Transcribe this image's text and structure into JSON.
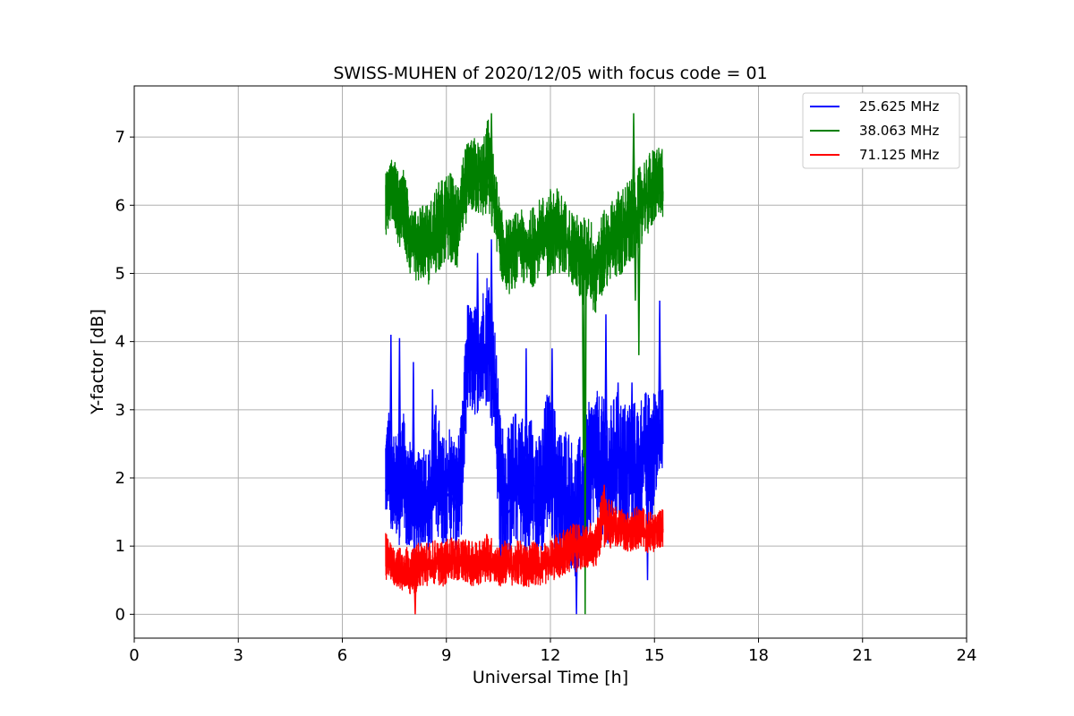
{
  "chart_data": {
    "type": "line",
    "title": "SWISS-MUHEN of 2020/12/05 with focus code = 01",
    "xlabel": "Universal Time [h]",
    "ylabel": "Y-factor [dB]",
    "xlim": [
      0,
      24
    ],
    "ylim": [
      -0.35,
      7.75
    ],
    "xticks": [
      0,
      3,
      6,
      9,
      12,
      15,
      18,
      21,
      24
    ],
    "yticks": [
      0,
      1,
      2,
      3,
      4,
      5,
      6,
      7
    ],
    "grid": true,
    "legend_position": "top-right",
    "series": [
      {
        "name": "25.625 MHz",
        "color": "#0000ff",
        "x": [
          7.25,
          7.35,
          7.45,
          7.55,
          7.65,
          7.75,
          7.85,
          7.95,
          8.1,
          8.3,
          8.5,
          8.7,
          8.9,
          9.1,
          9.3,
          9.45,
          9.6,
          9.8,
          10.0,
          10.2,
          10.4,
          10.55,
          10.7,
          10.9,
          11.1,
          11.3,
          11.5,
          11.7,
          11.9,
          12.1,
          12.3,
          12.5,
          12.7,
          12.9,
          13.1,
          13.3,
          13.5,
          13.7,
          13.9,
          14.1,
          14.3,
          14.5,
          14.7,
          14.9,
          15.1,
          15.25
        ],
        "y": [
          1.8,
          2.3,
          1.6,
          2.0,
          1.7,
          2.2,
          1.5,
          1.8,
          1.3,
          1.7,
          1.5,
          2.0,
          1.6,
          1.8,
          1.5,
          1.9,
          3.7,
          3.5,
          3.6,
          3.7,
          3.3,
          1.8,
          1.4,
          1.6,
          1.8,
          1.5,
          1.7,
          1.4,
          2.0,
          1.8,
          1.5,
          1.6,
          1.3,
          1.5,
          1.9,
          2.1,
          2.0,
          1.8,
          2.2,
          2.0,
          2.1,
          1.9,
          2.4,
          2.0,
          2.6,
          2.5
        ],
        "envelope_low": [
          1.3,
          1.6,
          1.0,
          1.2,
          1.0,
          1.5,
          0.9,
          1.0,
          0.8,
          1.0,
          0.9,
          1.2,
          1.0,
          1.1,
          0.9,
          1.2,
          3.0,
          2.9,
          3.0,
          3.0,
          2.6,
          0.6,
          0.8,
          0.9,
          1.1,
          0.5,
          1.0,
          0.7,
          1.2,
          1.0,
          0.6,
          0.8,
          0.5,
          0.7,
          1.2,
          1.4,
          1.1,
          1.0,
          1.5,
          1.2,
          1.3,
          1.0,
          1.6,
          1.3,
          2.0,
          2.0
        ],
        "envelope_high": [
          2.7,
          3.0,
          2.5,
          2.8,
          2.6,
          3.1,
          2.4,
          2.7,
          2.2,
          2.6,
          2.4,
          3.1,
          2.6,
          2.8,
          2.5,
          3.0,
          4.6,
          4.5,
          4.7,
          5.1,
          4.2,
          3.0,
          2.6,
          2.9,
          3.1,
          2.8,
          3.0,
          2.6,
          3.3,
          3.1,
          2.7,
          2.8,
          2.4,
          2.7,
          3.1,
          3.3,
          3.2,
          3.0,
          3.3,
          3.1,
          3.2,
          3.1,
          3.3,
          3.2,
          3.4,
          3.3
        ],
        "spikes": [
          [
            7.4,
            4.1
          ],
          [
            7.65,
            4.05
          ],
          [
            8.05,
            3.7
          ],
          [
            8.6,
            3.3
          ],
          [
            9.9,
            5.3
          ],
          [
            10.3,
            5.5
          ],
          [
            11.3,
            3.9
          ],
          [
            12.05,
            3.9
          ],
          [
            12.75,
            0.0
          ],
          [
            13.0,
            2.8
          ],
          [
            13.6,
            4.4
          ],
          [
            13.95,
            3.4
          ],
          [
            14.35,
            3.4
          ],
          [
            14.8,
            0.5
          ],
          [
            15.15,
            4.6
          ]
        ]
      },
      {
        "name": "38.063 MHz",
        "color": "#008000",
        "x": [
          7.25,
          7.35,
          7.45,
          7.55,
          7.65,
          7.75,
          7.85,
          7.95,
          8.1,
          8.3,
          8.5,
          8.7,
          8.9,
          9.1,
          9.3,
          9.45,
          9.6,
          9.8,
          10.0,
          10.2,
          10.4,
          10.55,
          10.7,
          10.9,
          11.1,
          11.3,
          11.5,
          11.7,
          11.9,
          12.1,
          12.3,
          12.5,
          12.7,
          12.9,
          13.1,
          13.3,
          13.5,
          13.7,
          13.9,
          14.1,
          14.3,
          14.5,
          14.7,
          14.9,
          15.1,
          15.25
        ],
        "y": [
          6.0,
          6.2,
          6.3,
          6.0,
          5.9,
          6.1,
          5.8,
          5.6,
          5.4,
          5.5,
          5.4,
          5.6,
          5.7,
          5.8,
          5.6,
          6.0,
          6.2,
          6.3,
          6.2,
          6.3,
          6.0,
          5.5,
          5.3,
          5.2,
          5.4,
          5.3,
          5.4,
          5.5,
          5.5,
          5.6,
          5.5,
          5.4,
          5.3,
          5.2,
          5.3,
          5.0,
          5.2,
          5.4,
          5.5,
          5.6,
          5.7,
          5.9,
          6.0,
          6.1,
          6.3,
          6.2
        ],
        "envelope_low": [
          5.5,
          5.7,
          5.8,
          5.5,
          5.3,
          5.5,
          5.2,
          5.0,
          4.9,
          4.9,
          4.8,
          5.0,
          5.1,
          5.2,
          5.0,
          5.5,
          5.8,
          5.9,
          5.8,
          5.8,
          5.5,
          5.0,
          4.7,
          4.7,
          4.9,
          4.8,
          4.8,
          5.0,
          4.9,
          5.0,
          5.0,
          4.9,
          4.8,
          4.5,
          4.6,
          4.4,
          4.6,
          4.9,
          4.9,
          5.0,
          5.1,
          5.3,
          5.5,
          5.6,
          5.9,
          5.8
        ],
        "envelope_high": [
          6.5,
          6.6,
          6.7,
          6.6,
          6.4,
          6.6,
          6.3,
          6.1,
          5.9,
          6.1,
          6.0,
          6.3,
          6.4,
          6.5,
          6.3,
          6.7,
          6.9,
          7.0,
          6.9,
          7.3,
          6.6,
          6.0,
          5.8,
          5.8,
          6.0,
          5.8,
          6.0,
          6.1,
          6.2,
          6.3,
          6.2,
          6.0,
          5.9,
          5.8,
          5.9,
          5.6,
          5.9,
          6.0,
          6.2,
          6.3,
          6.4,
          6.5,
          6.7,
          6.8,
          6.9,
          6.8
        ],
        "spikes": [
          [
            10.3,
            7.35
          ],
          [
            13.0,
            0.0
          ],
          [
            14.4,
            7.35
          ],
          [
            14.55,
            3.8
          ],
          [
            14.45,
            4.6
          ],
          [
            13.05,
            4.7
          ],
          [
            12.95,
            2.3
          ]
        ]
      },
      {
        "name": "71.125 MHz",
        "color": "#ff0000",
        "x": [
          7.25,
          7.35,
          7.45,
          7.55,
          7.65,
          7.75,
          7.85,
          7.95,
          8.1,
          8.3,
          8.5,
          8.7,
          8.9,
          9.1,
          9.3,
          9.45,
          9.6,
          9.8,
          10.0,
          10.2,
          10.4,
          10.55,
          10.7,
          10.9,
          11.1,
          11.3,
          11.5,
          11.7,
          11.9,
          12.1,
          12.3,
          12.5,
          12.7,
          12.9,
          13.1,
          13.3,
          13.5,
          13.7,
          13.9,
          14.1,
          14.3,
          14.5,
          14.7,
          14.9,
          15.1,
          15.25
        ],
        "y": [
          0.8,
          0.75,
          0.7,
          0.65,
          0.7,
          0.6,
          0.7,
          0.6,
          0.65,
          0.7,
          0.7,
          0.75,
          0.7,
          0.8,
          0.75,
          0.8,
          0.75,
          0.7,
          0.75,
          0.8,
          0.7,
          0.7,
          0.75,
          0.7,
          0.75,
          0.7,
          0.75,
          0.7,
          0.75,
          0.8,
          0.85,
          0.9,
          0.95,
          0.95,
          1.0,
          0.95,
          1.4,
          1.3,
          1.3,
          1.25,
          1.2,
          1.3,
          1.2,
          1.2,
          1.2,
          1.25
        ],
        "envelope_low": [
          0.5,
          0.5,
          0.45,
          0.4,
          0.4,
          0.3,
          0.4,
          0.3,
          0.3,
          0.4,
          0.4,
          0.45,
          0.4,
          0.5,
          0.45,
          0.5,
          0.45,
          0.4,
          0.45,
          0.5,
          0.4,
          0.4,
          0.45,
          0.4,
          0.45,
          0.35,
          0.45,
          0.4,
          0.45,
          0.5,
          0.55,
          0.6,
          0.6,
          0.65,
          0.7,
          0.65,
          1.0,
          0.95,
          0.95,
          0.95,
          0.9,
          0.95,
          0.9,
          0.9,
          0.95,
          1.0
        ],
        "envelope_high": [
          1.2,
          1.1,
          1.0,
          0.9,
          1.0,
          0.9,
          1.0,
          0.9,
          1.0,
          1.1,
          1.05,
          1.1,
          1.05,
          1.15,
          1.1,
          1.1,
          1.1,
          1.05,
          1.15,
          1.2,
          1.05,
          1.0,
          1.1,
          1.0,
          1.1,
          1.0,
          1.1,
          1.0,
          1.1,
          1.15,
          1.2,
          1.3,
          1.35,
          1.3,
          1.35,
          1.3,
          1.85,
          1.7,
          1.6,
          1.55,
          1.5,
          1.6,
          1.55,
          1.5,
          1.5,
          1.55
        ],
        "spikes": [
          [
            8.1,
            0.0
          ],
          [
            13.55,
            1.9
          ]
        ]
      }
    ]
  }
}
